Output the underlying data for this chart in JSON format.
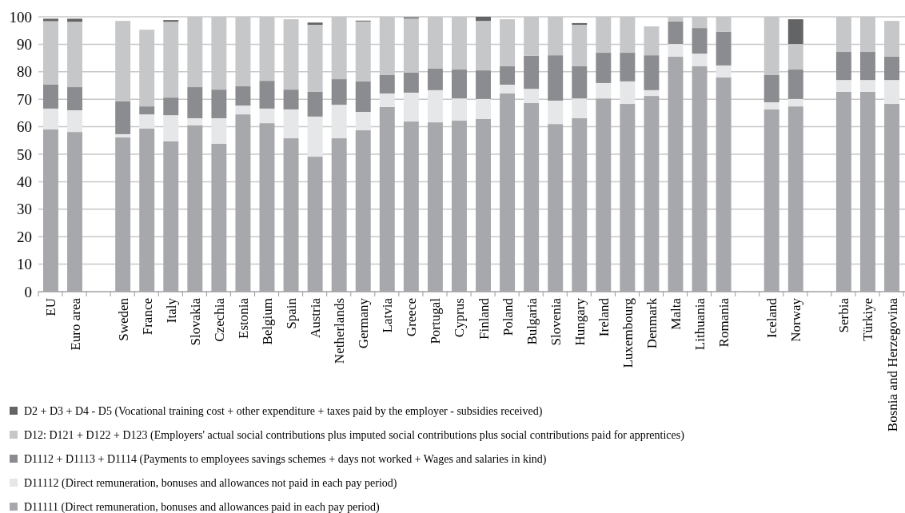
{
  "chart_data": {
    "type": "bar",
    "stacked": true,
    "legend": "bottom",
    "grid": "y",
    "categories": [
      "EU",
      "Euro area",
      null,
      "Sweden",
      "France",
      "Italy",
      "Slovakia",
      "Czechia",
      "Estonia",
      "Belgium",
      "Spain",
      "Austria",
      "Netherlands",
      "Germany",
      "Latvia",
      "Greece",
      "Portugal",
      "Cyprus",
      "Finland",
      "Poland",
      "Bulgaria",
      "Slovenia",
      "Hungary",
      "Ireland",
      "Luxembourg",
      "Denmark",
      "Malta",
      "Lithuania",
      "Romania",
      null,
      "Iceland",
      "Norway",
      null,
      "Serbia",
      "Türkiye",
      "Bosnia and Herzegovina"
    ],
    "ylim": [
      0,
      100
    ],
    "yticks": [
      0,
      10,
      20,
      30,
      40,
      50,
      60,
      70,
      80,
      90,
      100
    ],
    "series": [
      {
        "name": "D11111 (Direct remuneration, bonuses and allowances paid in each pay period)",
        "color": "#a7a8ac",
        "values": [
          59.0,
          58.1,
          null,
          56.1,
          59.3,
          54.7,
          60.5,
          53.8,
          64.5,
          61.3,
          55.8,
          49.1,
          55.8,
          58.7,
          67.2,
          61.9,
          61.6,
          62.2,
          62.8,
          72.1,
          68.6,
          61.0,
          63.1,
          70.3,
          68.3,
          71.2,
          85.5,
          82.0,
          77.9,
          null,
          66.3,
          67.4,
          null,
          72.7,
          72.7,
          68.3
        ]
      },
      {
        "name": "D11112 (Direct remuneration, bonuses and allowances not paid in each pay period)",
        "color": "#e6e7e8",
        "values": [
          7.6,
          7.9,
          null,
          1.2,
          5.2,
          9.5,
          2.6,
          9.3,
          3.2,
          5.3,
          10.5,
          14.6,
          12.2,
          6.7,
          4.9,
          10.5,
          11.7,
          8.1,
          7.3,
          3.2,
          5.2,
          8.5,
          7.2,
          5.6,
          8.2,
          2.1,
          4.6,
          4.6,
          4.4,
          null,
          2.6,
          2.7,
          null,
          4.3,
          4.3,
          8.7
        ]
      },
      {
        "name": "D1112 + D1113 + D1114 (Payments to employees savings schemes + days not worked + Wages and salaries in kind)",
        "color": "#8b8c90",
        "values": [
          8.7,
          8.4,
          null,
          11.9,
          2.9,
          6.4,
          11.3,
          10.4,
          7.0,
          10.1,
          7.2,
          9.0,
          9.3,
          11.1,
          6.7,
          7.3,
          7.8,
          10.5,
          10.4,
          6.7,
          12.0,
          16.5,
          11.7,
          11.0,
          10.4,
          12.7,
          8.2,
          9.3,
          12.2,
          null,
          9.9,
          10.7,
          null,
          10.2,
          10.2,
          8.5
        ]
      },
      {
        "name": "D12: D121 + D122 + D123 (Employers' actual social contributions plus imputed social contributions plus social contributions paid for apprentices)",
        "color": "#c6c7c9",
        "values": [
          23.1,
          23.8,
          null,
          29.3,
          27.9,
          27.6,
          25.6,
          26.5,
          25.3,
          23.3,
          25.6,
          24.4,
          22.7,
          21.8,
          21.2,
          19.7,
          18.9,
          19.2,
          18.0,
          17.1,
          14.2,
          14.0,
          15.1,
          13.1,
          13.1,
          10.5,
          1.7,
          4.1,
          5.5,
          null,
          21.2,
          9.3,
          null,
          12.8,
          12.8,
          13.0
        ]
      },
      {
        "name": "D2 + D3 + D4 - D5 (Vocational training cost + other expenditure + taxes paid by the employer - subsidies received)",
        "color": "#636466",
        "values": [
          0.9,
          1.1,
          null,
          0,
          0,
          0.6,
          0,
          0,
          0,
          0,
          0,
          0.8,
          0,
          0.3,
          0,
          0.4,
          0,
          0,
          1.5,
          0,
          0,
          0,
          0.6,
          0,
          0,
          0,
          0,
          0,
          0,
          null,
          0,
          9.0,
          null,
          0,
          0,
          0
        ]
      }
    ]
  }
}
